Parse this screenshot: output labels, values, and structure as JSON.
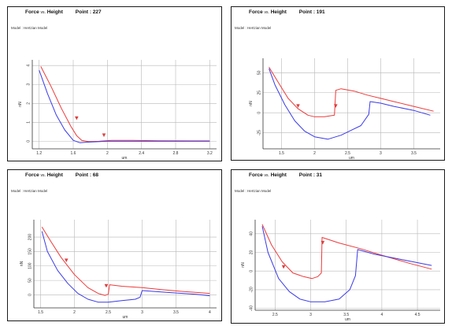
{
  "colors": {
    "approach": "#ee3a3a",
    "retract": "#3a3ae8",
    "grid": "#b8b8b8",
    "axis": "#333333"
  },
  "chart_data": [
    {
      "type": "line",
      "title": {
        "a": "Force",
        "vs": "vs.",
        "b": "Height",
        "point": "Point : 227"
      },
      "model": "Model :   Hertzian Model",
      "xlabel": "um",
      "ylabel": "nN",
      "xlim": [
        1.12,
        3.28
      ],
      "ylim": [
        -0.4,
        4.3
      ],
      "xticks": [
        1.2,
        1.6,
        2,
        2.4,
        2.8,
        3.2
      ],
      "xtick_labels": [
        "1.2",
        "1.6",
        "2",
        "2.4",
        "2.8",
        "3.2"
      ],
      "yticks": [
        0,
        1,
        2,
        3,
        4
      ],
      "ytick_labels": [
        "0",
        "1",
        "2",
        "3",
        "4"
      ],
      "series": [
        {
          "role": "approach",
          "x": [
            1.22,
            1.34,
            1.46,
            1.57,
            1.64,
            1.7,
            1.78,
            1.9,
            2.05,
            2.3,
            2.6,
            3.0,
            3.2
          ],
          "y": [
            3.95,
            2.9,
            1.75,
            0.8,
            0.3,
            0.05,
            -0.02,
            0.0,
            0.05,
            0.05,
            0.03,
            0.02,
            0.02
          ]
        },
        {
          "role": "retract",
          "x": [
            1.2,
            1.3,
            1.4,
            1.5,
            1.6,
            1.68,
            1.75,
            1.85,
            2.0,
            2.4,
            2.8,
            3.2
          ],
          "y": [
            3.75,
            2.5,
            1.4,
            0.6,
            0.05,
            -0.08,
            -0.05,
            -0.03,
            0.0,
            0.0,
            0.0,
            0.0
          ]
        }
      ],
      "markers": [
        {
          "x": 1.64,
          "y": 1.2
        },
        {
          "x": 1.96,
          "y": 0.3
        }
      ]
    },
    {
      "type": "line",
      "title": {
        "a": "Force",
        "vs": "vs.",
        "b": "Height",
        "point": "Point : 191"
      },
      "model": "Model :   Hertzian Model",
      "xlabel": "um",
      "ylabel": "nN",
      "xlim": [
        1.22,
        3.9
      ],
      "ylim": [
        -45,
        68
      ],
      "xticks": [
        1.5,
        2,
        2.5,
        3,
        3.5
      ],
      "xtick_labels": [
        "1.5",
        "2",
        "2.5",
        "3",
        "3.5"
      ],
      "yticks": [
        -25,
        0,
        25,
        50
      ],
      "ytick_labels": [
        "-25",
        "0",
        "25",
        "50"
      ],
      "series": [
        {
          "role": "approach",
          "x": [
            1.31,
            1.45,
            1.6,
            1.75,
            1.9,
            2.0,
            2.15,
            2.3,
            2.32,
            2.4,
            2.6,
            2.8,
            3.0,
            3.2,
            3.5,
            3.8
          ],
          "y": [
            57,
            38,
            18,
            5,
            -3,
            -5,
            -5,
            -3,
            28,
            30,
            27,
            22,
            18,
            14,
            8,
            2
          ]
        },
        {
          "role": "retract",
          "x": [
            1.31,
            1.4,
            1.55,
            1.7,
            1.85,
            2.0,
            2.2,
            2.4,
            2.55,
            2.7,
            2.82,
            2.84,
            3.0,
            3.2,
            3.5,
            3.75
          ],
          "y": [
            55,
            35,
            10,
            -10,
            -23,
            -30,
            -33,
            -28,
            -22,
            -16,
            -2,
            14,
            12,
            8,
            3,
            -3
          ]
        }
      ],
      "markers": [
        {
          "x": 1.75,
          "y": 8
        },
        {
          "x": 2.32,
          "y": 8
        }
      ]
    },
    {
      "type": "line",
      "title": {
        "a": "Force",
        "vs": "vs.",
        "b": "Height",
        "point": "Point : 68"
      },
      "model": "Model :   Hertzian Model",
      "xlabel": "um",
      "ylabel": "nN",
      "xlim": [
        1.4,
        4.1
      ],
      "ylim": [
        -45,
        260
      ],
      "xticks": [
        1.5,
        2,
        2.5,
        3,
        3.5,
        4
      ],
      "xtick_labels": [
        "1.5",
        "2",
        "2.5",
        "3",
        "3.5",
        "4"
      ],
      "yticks": [
        0,
        50,
        100,
        150,
        200
      ],
      "ytick_labels": [
        "0",
        "50",
        "100",
        "150",
        "200"
      ],
      "series": [
        {
          "role": "approach",
          "x": [
            1.52,
            1.65,
            1.8,
            2.0,
            2.2,
            2.35,
            2.45,
            2.5,
            2.52,
            2.7,
            3.0,
            3.3,
            3.6,
            4.0
          ],
          "y": [
            235,
            185,
            130,
            70,
            25,
            5,
            -2,
            2,
            35,
            30,
            25,
            18,
            12,
            5
          ]
        },
        {
          "role": "retract",
          "x": [
            1.52,
            1.6,
            1.75,
            1.9,
            2.05,
            2.2,
            2.35,
            2.5,
            2.7,
            2.9,
            2.97,
            3.0,
            3.4,
            3.8,
            4.0
          ],
          "y": [
            220,
            150,
            85,
            40,
            5,
            -15,
            -25,
            -25,
            -20,
            -15,
            -8,
            15,
            8,
            2,
            -3
          ]
        }
      ],
      "markers": [
        {
          "x": 1.88,
          "y": 118
        },
        {
          "x": 2.47,
          "y": 30
        }
      ]
    },
    {
      "type": "line",
      "title": {
        "a": "Force",
        "vs": "vs.",
        "b": "Height",
        "point": "Point : 31"
      },
      "model": "Model :   Hertzian Model",
      "xlabel": "um",
      "ylabel": "nN",
      "xlim": [
        2.22,
        4.82
      ],
      "ylim": [
        -42,
        55
      ],
      "xticks": [
        2.5,
        3,
        3.5,
        4,
        4.5
      ],
      "xtick_labels": [
        "2.5",
        "3",
        "3.5",
        "4",
        "4.5"
      ],
      "yticks": [
        -40,
        -20,
        0,
        20,
        40
      ],
      "ytick_labels": [
        "-40",
        "-20",
        "0",
        "20",
        "40"
      ],
      "series": [
        {
          "role": "approach",
          "x": [
            2.32,
            2.45,
            2.6,
            2.75,
            2.9,
            3.02,
            3.1,
            3.15,
            3.16,
            3.4,
            3.7,
            4.0,
            4.4,
            4.7
          ],
          "y": [
            50,
            28,
            10,
            -2,
            -6,
            -8,
            -6,
            -2,
            36,
            30,
            24,
            17,
            8,
            2
          ]
        },
        {
          "role": "retract",
          "x": [
            2.32,
            2.4,
            2.55,
            2.7,
            2.85,
            3.0,
            3.2,
            3.4,
            3.55,
            3.63,
            3.66,
            3.9,
            4.3,
            4.7
          ],
          "y": [
            48,
            20,
            -8,
            -22,
            -30,
            -33,
            -33,
            -30,
            -20,
            -5,
            23,
            18,
            12,
            6
          ]
        }
      ],
      "markers": [
        {
          "x": 2.62,
          "y": 4
        },
        {
          "x": 3.17,
          "y": 30
        }
      ]
    }
  ]
}
